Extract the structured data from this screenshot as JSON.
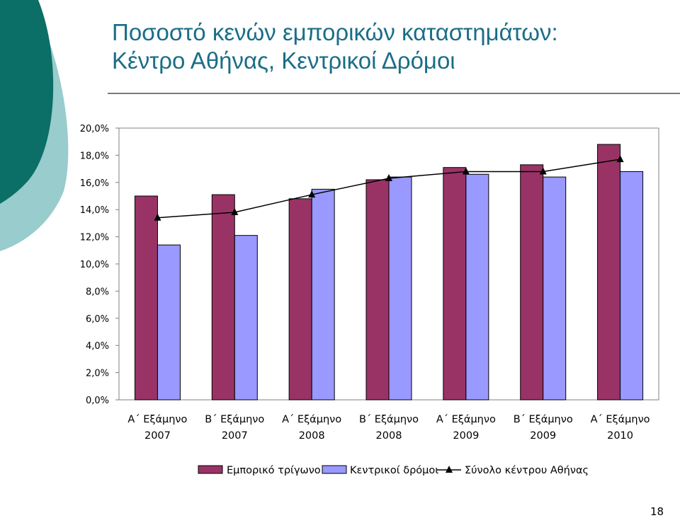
{
  "title": {
    "line1": "Ποσοστό κενών εμπορικών καταστημάτων:",
    "line2": "Κέντρο Αθήνας, Κεντρικοί Δρόμοι"
  },
  "page_number": "18",
  "colors": {
    "title": "#1a6e86",
    "deco_dark": "#0b6e67",
    "deco_light": "#99cccc",
    "series_commercial": "#993366",
    "series_central": "#9999ff",
    "series_total": "#000000"
  },
  "chart_data": {
    "type": "bar",
    "categories": [
      [
        "Α΄ Εξάμηνο",
        "2007"
      ],
      [
        "Β΄ Εξάμηνο",
        "2007"
      ],
      [
        "Α΄ Εξάμηνο",
        "2008"
      ],
      [
        "Β΄ Εξάμηνο",
        "2008"
      ],
      [
        "Α΄ Εξάμηνο",
        "2009"
      ],
      [
        "Β΄ Εξάμηνο",
        "2009"
      ],
      [
        "Α΄ Εξάμηνο",
        "2010"
      ]
    ],
    "series": [
      {
        "name": "Εμπορικό τρίγωνο",
        "type": "bar",
        "color": "#993366",
        "values": [
          15.0,
          15.1,
          14.8,
          16.2,
          17.1,
          17.3,
          18.8
        ]
      },
      {
        "name": "Κεντρικοί δρόμοι",
        "type": "bar",
        "color": "#9999ff",
        "values": [
          11.4,
          12.1,
          15.5,
          16.4,
          16.6,
          16.4,
          16.8
        ]
      },
      {
        "name": "Σύνολο κέντρου Αθήνας",
        "type": "line",
        "marker": "triangle",
        "color": "#000000",
        "values": [
          13.4,
          13.8,
          15.1,
          16.3,
          16.8,
          16.8,
          17.7
        ]
      }
    ],
    "y_ticks": [
      "0,0%",
      "2,0%",
      "4,0%",
      "6,0%",
      "8,0%",
      "10,0%",
      "12,0%",
      "14,0%",
      "16,0%",
      "18,0%",
      "20,0%"
    ],
    "ylim": [
      0,
      20
    ],
    "xlabel": "",
    "ylabel": "",
    "grid": false,
    "legend_position": "bottom"
  }
}
